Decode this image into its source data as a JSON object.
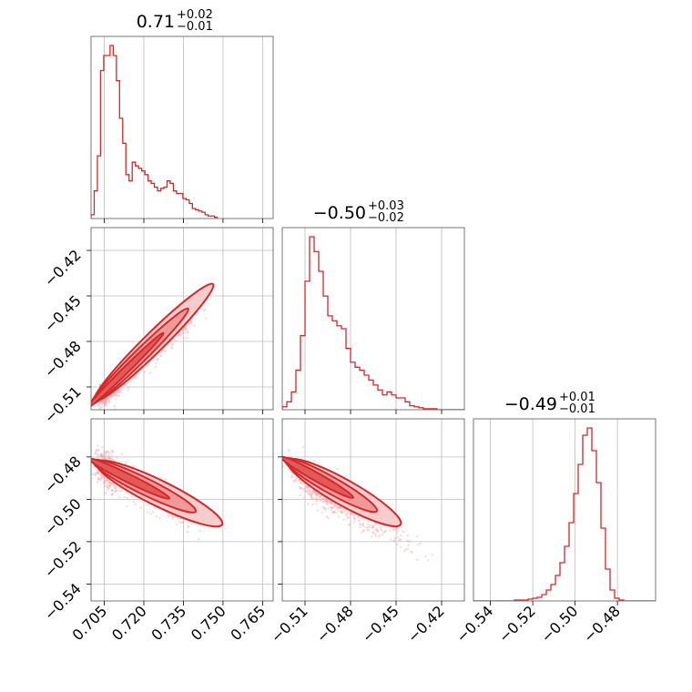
{
  "chart_data": {
    "type": "corner",
    "color": "#d62728",
    "parameters": [
      {
        "median": "0.71",
        "plus": "+0.02",
        "minus": "−0.01",
        "range": [
          0.7,
          0.769
        ],
        "ticks": [
          0.705,
          0.72,
          0.735,
          0.75,
          0.765
        ],
        "tick_labels": [
          "0.705",
          "0.720",
          "0.735",
          "0.750",
          "0.765"
        ]
      },
      {
        "median": "−0.50",
        "plus": "+0.03",
        "minus": "−0.02",
        "range": [
          -0.525,
          -0.405
        ],
        "ticks": [
          -0.51,
          -0.48,
          -0.45,
          -0.42
        ],
        "tick_labels": [
          "−0.51",
          "−0.48",
          "−0.45",
          "−0.42"
        ]
      },
      {
        "median": "−0.49",
        "plus": "+0.01",
        "minus": "−0.01",
        "range": [
          -0.548,
          -0.462
        ],
        "ticks": [
          -0.54,
          -0.52,
          -0.5,
          -0.48
        ],
        "tick_labels": [
          "−0.54",
          "−0.52",
          "−0.50",
          "−0.48"
        ]
      }
    ],
    "histograms": [
      {
        "name": "p0",
        "edges_start": 0.7,
        "edges_step": 0.0012,
        "counts": [
          3,
          22,
          50,
          118,
          130,
          130,
          138,
          130,
          110,
          80,
          60,
          35,
          30,
          45,
          42,
          40,
          38,
          35,
          30,
          28,
          25,
          22,
          24,
          25,
          30,
          28,
          22,
          20,
          20,
          16,
          15,
          12,
          8,
          7,
          6,
          5,
          3,
          2,
          2,
          1
        ]
      },
      {
        "name": "p1",
        "edges_start": -0.525,
        "edges_step": 0.003,
        "counts": [
          3,
          8,
          18,
          40,
          75,
          130,
          175,
          160,
          140,
          115,
          95,
          90,
          85,
          82,
          62,
          48,
          43,
          40,
          35,
          30,
          25,
          20,
          15,
          18,
          15,
          12,
          12,
          8,
          4,
          3,
          2,
          1,
          1,
          1,
          0,
          0,
          0,
          0,
          0,
          0
        ]
      },
      {
        "name": "p2",
        "edges_start": -0.548,
        "edges_step": 0.00215,
        "counts": [
          0,
          0,
          0,
          0,
          0,
          0,
          0,
          0,
          0,
          1,
          1,
          1,
          2,
          3,
          4,
          7,
          12,
          18,
          28,
          42,
          60,
          86,
          118,
          150,
          182,
          190,
          165,
          130,
          80,
          35,
          12,
          3,
          1,
          0,
          0,
          0,
          0,
          0,
          0,
          0
        ]
      }
    ],
    "pairs": [
      {
        "x_param": 0,
        "y_param": 1,
        "correlation": 0.97
      },
      {
        "x_param": 0,
        "y_param": 2,
        "correlation": -0.82
      },
      {
        "x_param": 1,
        "y_param": 2,
        "correlation": -0.85
      }
    ],
    "grid": true
  }
}
